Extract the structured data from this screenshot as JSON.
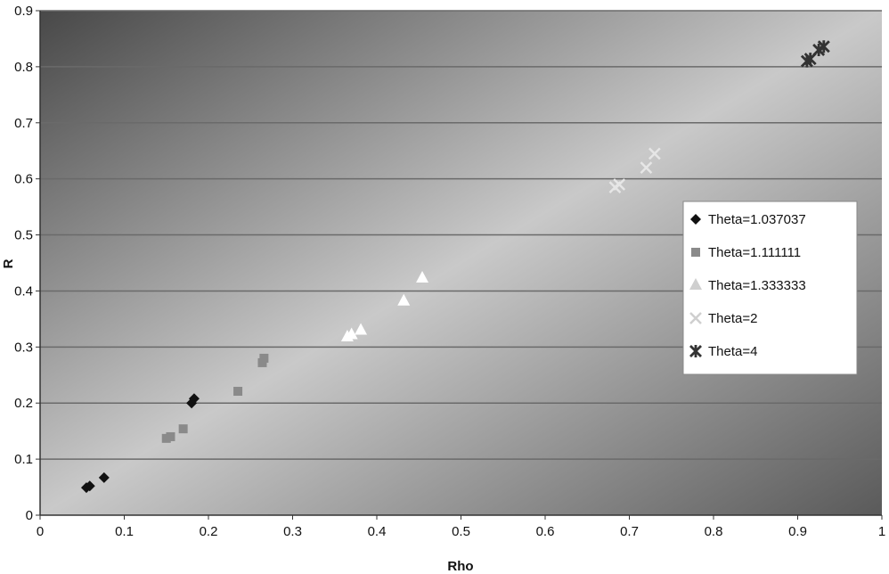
{
  "chart_data": {
    "type": "scatter",
    "title": "",
    "xlabel": "Rho",
    "ylabel": "R",
    "xlim": [
      0,
      1
    ],
    "ylim": [
      0,
      0.9
    ],
    "xticks": [
      "0",
      "0.1",
      "0.2",
      "0.3",
      "0.4",
      "0.5",
      "0.6",
      "0.7",
      "0.8",
      "0.9",
      "1"
    ],
    "yticks": [
      "0",
      "0.1",
      "0.2",
      "0.3",
      "0.4",
      "0.5",
      "0.6",
      "0.7",
      "0.8",
      "0.9"
    ],
    "grid": "horizontal",
    "legend_position": "right",
    "series": [
      {
        "name": "Theta=1.037037",
        "marker": "diamond",
        "color": "#111111",
        "points": [
          [
            0.055,
            0.049
          ],
          [
            0.059,
            0.052
          ],
          [
            0.076,
            0.067
          ],
          [
            0.18,
            0.2
          ],
          [
            0.183,
            0.208
          ]
        ]
      },
      {
        "name": "Theta=1.111111",
        "marker": "square",
        "color": "#8a8a8a",
        "points": [
          [
            0.15,
            0.137
          ],
          [
            0.155,
            0.14
          ],
          [
            0.17,
            0.154
          ],
          [
            0.235,
            0.221
          ],
          [
            0.264,
            0.272
          ],
          [
            0.266,
            0.28
          ]
        ]
      },
      {
        "name": "Theta=1.333333",
        "marker": "triangle",
        "color": "#ffffff",
        "points": [
          [
            0.365,
            0.318
          ],
          [
            0.37,
            0.322
          ],
          [
            0.381,
            0.33
          ],
          [
            0.432,
            0.382
          ],
          [
            0.454,
            0.423
          ]
        ]
      },
      {
        "name": "Theta=2",
        "marker": "x",
        "color": "#e6e6e6",
        "points": [
          [
            0.683,
            0.585
          ],
          [
            0.688,
            0.59
          ],
          [
            0.72,
            0.62
          ],
          [
            0.73,
            0.645
          ]
        ]
      },
      {
        "name": "Theta=4",
        "marker": "star",
        "color": "#333333",
        "points": [
          [
            0.911,
            0.81
          ],
          [
            0.915,
            0.814
          ],
          [
            0.925,
            0.83
          ],
          [
            0.931,
            0.836
          ]
        ]
      }
    ]
  }
}
